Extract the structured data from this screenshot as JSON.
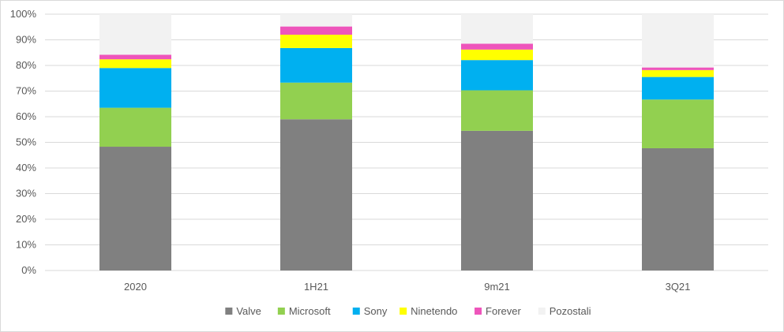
{
  "chart_data": {
    "type": "bar",
    "stacked": true,
    "categories": [
      "2020",
      "1H21",
      "9m21",
      "3Q21"
    ],
    "series": [
      {
        "name": "Valve",
        "color": "#808080",
        "values": [
          48.3,
          59.0,
          54.5,
          47.7
        ]
      },
      {
        "name": "Microsoft",
        "color": "#92D050",
        "values": [
          15.2,
          14.3,
          15.8,
          19.0
        ]
      },
      {
        "name": "Sony",
        "color": "#00B0F0",
        "values": [
          15.5,
          13.5,
          11.8,
          8.8
        ]
      },
      {
        "name": "Ninetendo",
        "color": "#FFFF00",
        "values": [
          3.4,
          5.2,
          4.1,
          2.7
        ]
      },
      {
        "name": "Forever",
        "color": "#EE55BB",
        "values": [
          1.8,
          3.2,
          2.3,
          1.0
        ]
      },
      {
        "name": "Pozostali",
        "color": "#F2F2F2",
        "values": [
          15.8,
          4.8,
          11.5,
          20.8
        ]
      }
    ],
    "y_ticks": [
      "0%",
      "10%",
      "20%",
      "30%",
      "40%",
      "50%",
      "60%",
      "70%",
      "80%",
      "90%",
      "100%"
    ],
    "ylim": [
      0,
      100
    ],
    "grid": true,
    "legend_position": "bottom"
  }
}
